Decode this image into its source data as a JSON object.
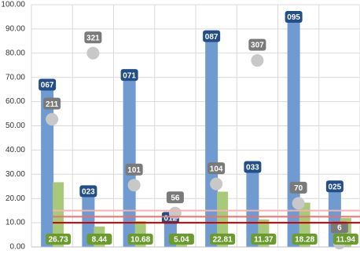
{
  "chart_data": {
    "type": "combo",
    "categories": [
      null,
      null,
      null,
      null,
      null,
      null,
      null,
      null
    ],
    "series": [
      {
        "kind": "bar",
        "color": "#6f9bd1",
        "label_color": "#234f86",
        "values": [
          67,
          23,
          71,
          12,
          87,
          33,
          95,
          25
        ],
        "value_labels": [
          "067",
          "023",
          "071",
          "012",
          "087",
          "033",
          "095",
          "025"
        ]
      },
      {
        "kind": "bar",
        "color": "#a9c97a",
        "label_color": "#6b9a2f",
        "values": [
          26.73,
          8.44,
          10.68,
          5.04,
          22.81,
          11.37,
          18.28,
          11.94
        ]
      },
      {
        "kind": "bubble",
        "color": "#c8c8c8",
        "label_color": "#7a7a7a",
        "values": [
          52.7,
          80,
          25.5,
          14,
          26,
          77,
          18,
          1.6
        ],
        "sizes": [
          211,
          321,
          101,
          56,
          104,
          307,
          70,
          6
        ]
      }
    ],
    "reference_lines": [
      {
        "value": 15,
        "color": "#f3b3b3"
      },
      {
        "value": 12.5,
        "color": "#e57373"
      },
      {
        "value": 10,
        "color": "#c00000"
      }
    ],
    "ylim": [
      0,
      100
    ],
    "yticks": [
      {
        "value": 0,
        "label": "0.00"
      },
      {
        "value": 10,
        "label": "10.00"
      },
      {
        "value": 20,
        "label": "20.00"
      },
      {
        "value": 30,
        "label": "30.00"
      },
      {
        "value": 40,
        "label": "40.00"
      },
      {
        "value": 50,
        "label": "50.00"
      },
      {
        "value": 60,
        "label": "60.00"
      },
      {
        "value": 70,
        "label": "70.00"
      },
      {
        "value": 80,
        "label": "80.00"
      },
      {
        "value": 90,
        "label": "90.00"
      },
      {
        "value": 100,
        "label": "100.00"
      }
    ],
    "grid": true
  }
}
